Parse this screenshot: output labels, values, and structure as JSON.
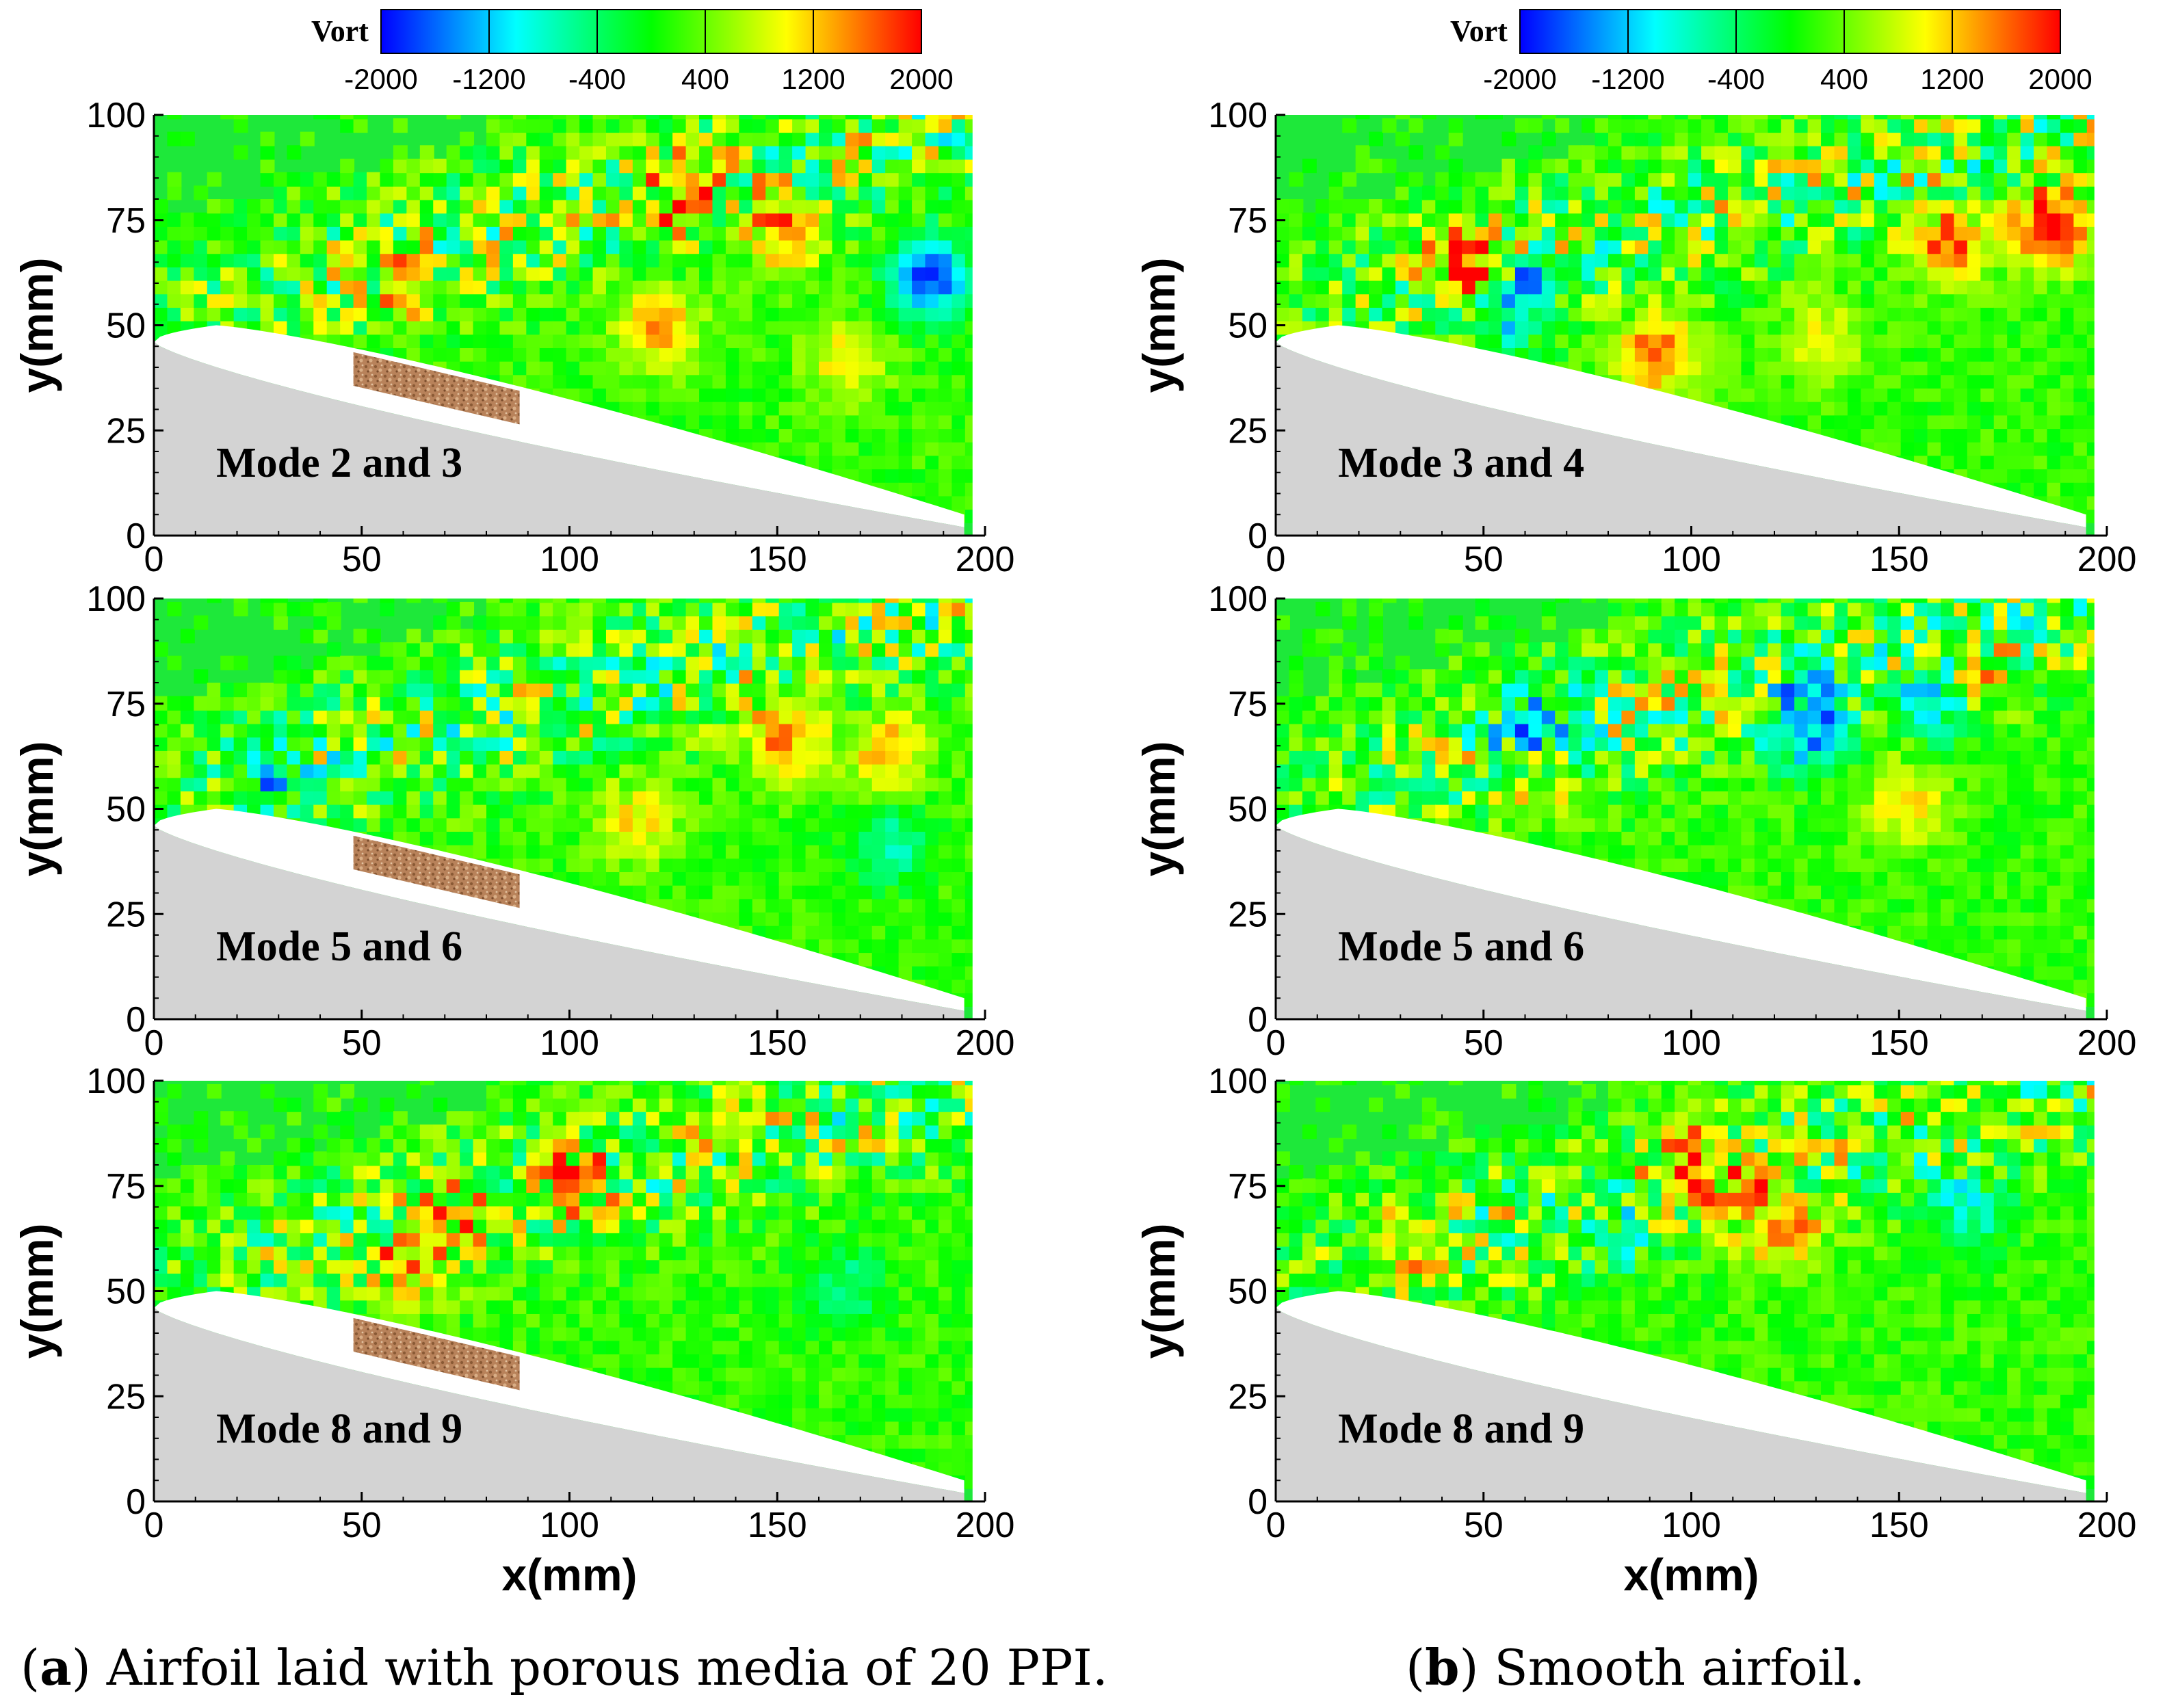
{
  "chart_data": {
    "type": "heatmap",
    "colorbar": {
      "title": "Vort",
      "ticks": [
        "-2000",
        "-1200",
        "-400",
        "400",
        "1200",
        "2000"
      ],
      "range": [
        -2000,
        2000
      ],
      "colors": [
        "#0000ff",
        "#00ffff",
        "#00ff00",
        "#ffff00",
        "#ff0000"
      ]
    },
    "axes": {
      "xlabel": "x(mm)",
      "ylabel": "y(mm)",
      "xlim": [
        0,
        200
      ],
      "ylim": [
        0,
        100
      ],
      "xticks": [
        "0",
        "50",
        "100",
        "150",
        "200"
      ],
      "yticks": [
        "0",
        "25",
        "50",
        "75",
        "100"
      ]
    },
    "columns": [
      {
        "caption_letter": "a",
        "caption_text": "Airfoil laid with porous media of 20 PPI.",
        "porous_insert": true,
        "panels": [
          {
            "label": "Mode 2 and 3",
            "seed": 11,
            "blobs": [
              [
                125,
                80,
                1400
              ],
              [
                150,
                70,
                1200
              ],
              [
                185,
                60,
                -2000
              ],
              [
                120,
                48,
                1200
              ],
              [
                165,
                40,
                900
              ],
              [
                60,
                58,
                900
              ]
            ]
          },
          {
            "label": "Mode 5 and 6",
            "seed": 23,
            "blobs": [
              [
                150,
                65,
                1300
              ],
              [
                175,
                62,
                1200
              ],
              [
                175,
                40,
                -900
              ],
              [
                115,
                45,
                900
              ],
              [
                25,
                58,
                -1100
              ]
            ]
          },
          {
            "label": "Mode 8 and 9",
            "seed": 37,
            "blobs": [
              [
                75,
                68,
                1200
              ],
              [
                100,
                75,
                900
              ],
              [
                165,
                50,
                -700
              ],
              [
                60,
                55,
                1000
              ]
            ]
          }
        ]
      },
      {
        "caption_letter": "b",
        "caption_text": "Smooth airfoil.",
        "porous_insert": false,
        "panels": [
          {
            "label": "Mode 3 and 4",
            "seed": 51,
            "blobs": [
              [
                45,
                63,
                2000
              ],
              [
                55,
                55,
                -1800
              ],
              [
                185,
                72,
                2000
              ],
              [
                160,
                68,
                1500
              ],
              [
                90,
                42,
                1500
              ],
              [
                130,
                45,
                800
              ]
            ]
          },
          {
            "label": "Mode 5 and 6",
            "seed": 67,
            "blobs": [
              [
                165,
                78,
                1500
              ],
              [
                125,
                68,
                -1800
              ],
              [
                160,
                75,
                -1800
              ],
              [
                60,
                68,
                -1400
              ],
              [
                150,
                50,
                1000
              ],
              [
                60,
                55,
                900
              ]
            ]
          },
          {
            "label": "Mode 8 and 9",
            "seed": 79,
            "blobs": [
              [
                100,
                78,
                1700
              ],
              [
                120,
                65,
                1600
              ],
              [
                165,
                68,
                -1000
              ],
              [
                80,
                62,
                -700
              ],
              [
                30,
                58,
                900
              ]
            ]
          }
        ]
      }
    ]
  }
}
